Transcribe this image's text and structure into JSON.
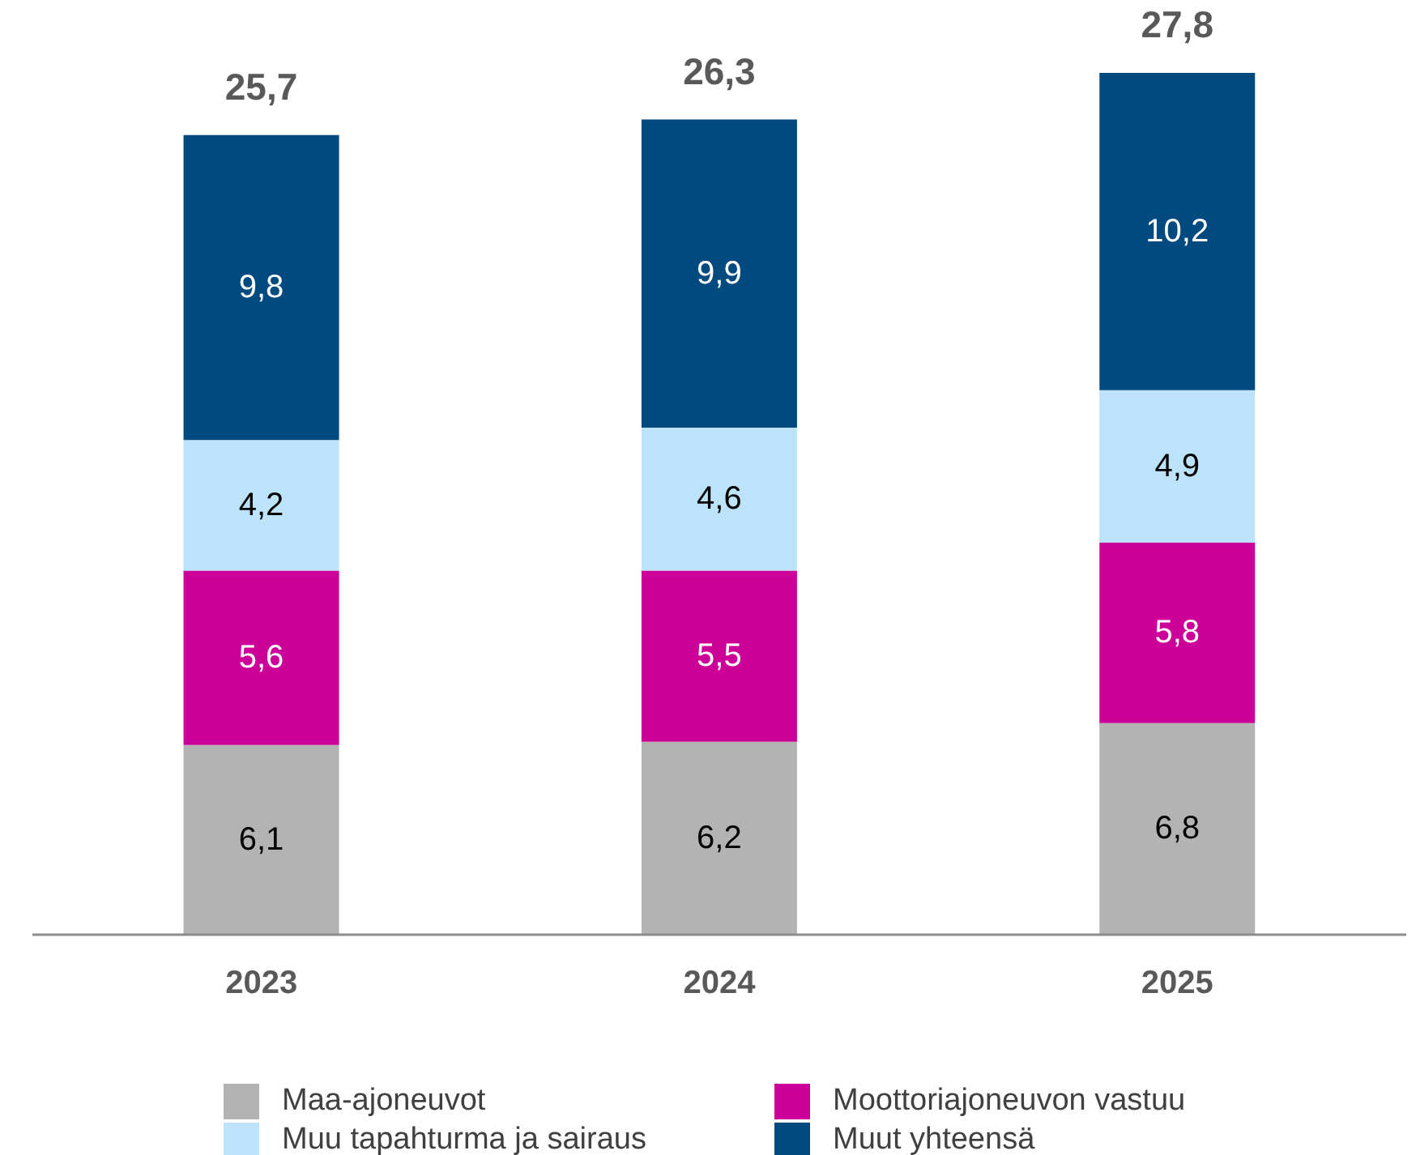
{
  "chart_data": {
    "type": "bar",
    "stacked": true,
    "legend": "bottom",
    "grid": false,
    "categories": [
      "2023",
      "2024",
      "2025"
    ],
    "series": [
      {
        "name": "Maa-ajoneuvot",
        "color": "#b3b3b3",
        "values": [
          6.1,
          6.2,
          6.8
        ],
        "value_labels": [
          "6,1",
          "6,2",
          "6,8"
        ]
      },
      {
        "name": "Moottoriajoneuvon vastuu",
        "color": "#cc0099",
        "values": [
          5.6,
          5.5,
          5.8
        ],
        "value_labels": [
          "5,6",
          "5,5",
          "5,8"
        ]
      },
      {
        "name": "Muu tapahturma ja sairaus",
        "color": "#bde3fb",
        "values": [
          4.2,
          4.6,
          4.9
        ],
        "value_labels": [
          "4,2",
          "4,6",
          "4,9"
        ]
      },
      {
        "name": "Muut yhteensä",
        "color": "#004a80",
        "values": [
          9.8,
          9.9,
          10.2
        ],
        "value_labels": [
          "9,8",
          "9,9",
          "10,2"
        ]
      }
    ],
    "totals": [
      "25,7",
      "26,3",
      "27,8"
    ]
  }
}
